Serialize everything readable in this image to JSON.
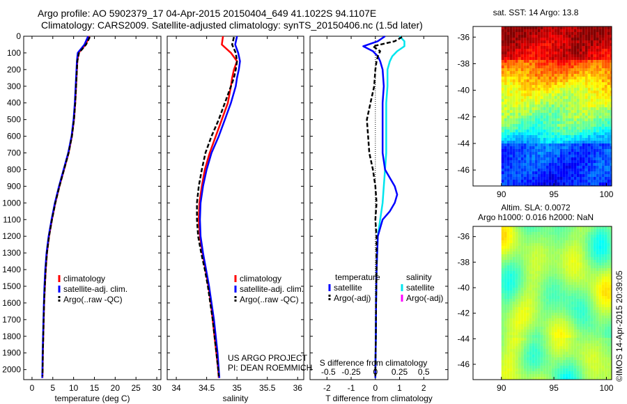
{
  "header": {
    "line1": "Argo profile: AO 5902379_17 04-Apr-2015 20150404_649 41.1022S 94.1107E",
    "line2": "Climatology: CARS2009. Satellite-adjusted climatology: synTS_20150406.nc (1.5d later)"
  },
  "project_note": {
    "line1": "US ARGO PROJECT",
    "line2": "PI: DEAN ROEMMICH"
  },
  "credit": "©IMOS 14-Apr-2015 20:39:05",
  "colors": {
    "climatology": "#ff0000",
    "satellite": "#0000ff",
    "argo": "#000000",
    "salinity_satellite": "#00e5ee",
    "salinity_argo": "#ff00ff"
  },
  "chart_data": [
    {
      "id": "temperature",
      "type": "line",
      "xlabel": "temperature (deg C)",
      "ylabel": "",
      "xlim": [
        -2,
        31
      ],
      "ylim": [
        2060,
        0
      ],
      "xticks": [
        0,
        5,
        10,
        15,
        20,
        25,
        30
      ],
      "yticks": [
        0,
        100,
        200,
        300,
        400,
        500,
        600,
        700,
        800,
        900,
        1000,
        1100,
        1200,
        1300,
        1400,
        1500,
        1600,
        1700,
        1800,
        1900,
        2000
      ],
      "legend": [
        "climatology",
        "satellite-adj. clim.",
        "Argo(..raw -QC)"
      ],
      "series": [
        {
          "name": "climatology",
          "depth": [
            0,
            50,
            100,
            150,
            200,
            300,
            400,
            500,
            600,
            700,
            800,
            900,
            1000,
            1100,
            1200,
            1300,
            1400,
            1500,
            1600,
            1700,
            1800,
            1900,
            2000,
            2050
          ],
          "values": [
            13.8,
            12.9,
            11.2,
            10.9,
            10.8,
            10.6,
            10.4,
            10.1,
            9.6,
            8.8,
            7.7,
            6.6,
            5.6,
            4.8,
            4.1,
            3.6,
            3.3,
            3.1,
            2.9,
            2.8,
            2.7,
            2.6,
            2.55,
            2.5
          ]
        },
        {
          "name": "satellite-adj. clim.",
          "depth": [
            0,
            50,
            100,
            150,
            200,
            300,
            400,
            500,
            600,
            700,
            800,
            900,
            1000,
            1100,
            1200,
            1300,
            1400,
            1500,
            1600,
            1700,
            1800,
            1900,
            2000,
            2050
          ],
          "values": [
            13.5,
            12.6,
            11.0,
            10.8,
            10.7,
            10.5,
            10.3,
            10.0,
            9.5,
            8.7,
            7.6,
            6.5,
            5.5,
            4.7,
            4.0,
            3.5,
            3.2,
            3.0,
            2.85,
            2.75,
            2.65,
            2.55,
            2.5,
            2.45
          ]
        },
        {
          "name": "Argo(..raw -QC)",
          "depth": [
            5,
            50,
            100,
            150,
            200,
            300,
            400,
            500,
            600,
            700,
            800,
            900,
            1000,
            1100,
            1200,
            1300,
            1400,
            1500,
            1600,
            1700,
            1800,
            1900,
            2000,
            2040
          ],
          "values": [
            13.9,
            13.0,
            11.3,
            10.9,
            10.8,
            10.6,
            10.4,
            10.1,
            9.6,
            8.8,
            7.7,
            6.6,
            5.6,
            4.8,
            4.1,
            3.6,
            3.3,
            3.1,
            2.9,
            2.8,
            2.7,
            2.6,
            2.55,
            2.5
          ]
        }
      ]
    },
    {
      "id": "salinity",
      "type": "line",
      "xlabel": "salinity",
      "ylabel": "",
      "xlim": [
        33.85,
        36.1
      ],
      "ylim": [
        2060,
        0
      ],
      "xticks": [
        34,
        34.5,
        35,
        35.5,
        36
      ],
      "legend": [
        "climatology",
        "satellite-adj. clim.",
        "Argo(..raw -QC)"
      ],
      "series": [
        {
          "name": "climatology",
          "depth": [
            0,
            50,
            100,
            150,
            200,
            250,
            300,
            400,
            500,
            600,
            700,
            800,
            900,
            1000,
            1100,
            1200,
            1300,
            1400,
            1500,
            1600,
            1700,
            1800,
            1900,
            2000,
            2050
          ],
          "values": [
            34.77,
            34.75,
            34.9,
            35.0,
            34.95,
            34.92,
            34.9,
            34.85,
            34.75,
            34.65,
            34.55,
            34.47,
            34.42,
            34.38,
            34.37,
            34.39,
            34.43,
            34.48,
            34.53,
            34.57,
            34.6,
            34.63,
            34.66,
            34.69,
            34.7
          ]
        },
        {
          "name": "satellite-adj. clim.",
          "depth": [
            0,
            50,
            100,
            150,
            200,
            250,
            300,
            400,
            500,
            600,
            700,
            800,
            900,
            1000,
            1100,
            1200,
            1300,
            1400,
            1500,
            1600,
            1700,
            1800,
            1900,
            2000,
            2050
          ],
          "values": [
            35.0,
            34.97,
            35.02,
            35.05,
            35.03,
            35.0,
            34.98,
            34.9,
            34.8,
            34.7,
            34.58,
            34.5,
            34.44,
            34.4,
            34.39,
            34.4,
            34.44,
            34.49,
            34.54,
            34.58,
            34.62,
            34.65,
            34.68,
            34.7,
            34.71
          ]
        },
        {
          "name": "Argo(..raw -QC)",
          "depth": [
            5,
            50,
            100,
            150,
            200,
            250,
            300,
            400,
            500,
            600,
            700,
            800,
            900,
            1000,
            1100,
            1200,
            1300,
            1400,
            1500,
            1600,
            1700,
            1800,
            1900,
            2000,
            2040
          ],
          "values": [
            34.95,
            34.92,
            34.98,
            35.0,
            34.98,
            34.95,
            34.9,
            34.8,
            34.7,
            34.58,
            34.48,
            34.42,
            34.37,
            34.34,
            34.34,
            34.36,
            34.41,
            34.47,
            34.52,
            34.56,
            34.6,
            34.63,
            34.66,
            34.69,
            34.7
          ]
        }
      ]
    },
    {
      "id": "difference",
      "type": "line",
      "xlabel": "T difference from climatology",
      "ylabel": "",
      "top_label": "S difference from climatology",
      "xlim": [
        -2.7,
        3.0
      ],
      "ylim": [
        2060,
        0
      ],
      "xticks": [
        -2,
        -1,
        0,
        1,
        2
      ],
      "top_ticks": [
        "-0.5",
        "-0.25",
        "0",
        "0.25",
        "0.5"
      ],
      "top_tick_values": [
        -2,
        -1,
        0,
        1,
        2
      ],
      "legend_titles": [
        "temperature",
        "salinity"
      ],
      "legend": [
        "satellite",
        "Argo(-adj)",
        "satellite",
        "Argo(-adj)"
      ],
      "series": [
        {
          "name": "temperature satellite",
          "depth": [
            0,
            30,
            60,
            90,
            120,
            150,
            200,
            300,
            400,
            500,
            600,
            700,
            800,
            850,
            900,
            950,
            1000,
            1050,
            1100,
            1200,
            1400,
            1600,
            1800,
            2000,
            2050
          ],
          "values": [
            0.4,
            0.1,
            -0.5,
            -0.1,
            0.1,
            0.2,
            0.3,
            0.35,
            0.3,
            0.3,
            0.3,
            0.3,
            0.4,
            0.6,
            0.8,
            0.9,
            0.8,
            0.6,
            0.3,
            0.1,
            0.05,
            0.03,
            0.02,
            0.0,
            0.0
          ]
        },
        {
          "name": "temperature Argo(-adj)",
          "depth": [
            5,
            30,
            60,
            90,
            120,
            150,
            200,
            300,
            400,
            500,
            600,
            700,
            800,
            900,
            1000,
            1100,
            1200,
            1400,
            1600,
            1800,
            2000,
            2040
          ],
          "values": [
            1.1,
            0.8,
            -0.1,
            0.2,
            0.1,
            0.05,
            0.0,
            -0.05,
            -0.2,
            -0.35,
            -0.3,
            -0.25,
            -0.1,
            0.0,
            0.05,
            0.0,
            0.05,
            0.05,
            0.03,
            0.02,
            0.0,
            0.0
          ]
        },
        {
          "name": "salinity satellite",
          "depth": [
            0,
            30,
            60,
            90,
            120,
            150,
            200,
            300,
            400,
            500,
            600,
            700,
            800,
            900,
            1000,
            1100,
            1200,
            1400,
            1600,
            1800,
            2000,
            2050
          ],
          "values": [
            1.0,
            1.2,
            1.2,
            0.9,
            0.7,
            0.6,
            0.5,
            0.5,
            0.45,
            0.45,
            0.45,
            0.45,
            0.4,
            0.35,
            0.3,
            0.2,
            0.1,
            0.05,
            0.03,
            0.02,
            0.0,
            0.0
          ]
        }
      ]
    },
    {
      "id": "sst_map",
      "type": "heatmap",
      "title": "sat. SST: 14 Argo: 13.8",
      "xticks": [
        90,
        95,
        100
      ],
      "yticks": [
        -36,
        -38,
        -40,
        -42,
        -44,
        -46
      ],
      "xlim": [
        87.3,
        100.5
      ],
      "ylim": [
        -47.2,
        -35.2
      ]
    },
    {
      "id": "sla_map",
      "type": "heatmap",
      "title": "Altim. SLA: 0.0072",
      "subtitle": "Argo h1000: 0.016 h2000: NaN",
      "xticks": [
        90,
        95,
        100
      ],
      "yticks": [
        -36,
        -38,
        -40,
        -42,
        -44,
        -46
      ],
      "xlim": [
        87.3,
        100.5
      ],
      "ylim": [
        -47.2,
        -35.2
      ]
    }
  ]
}
